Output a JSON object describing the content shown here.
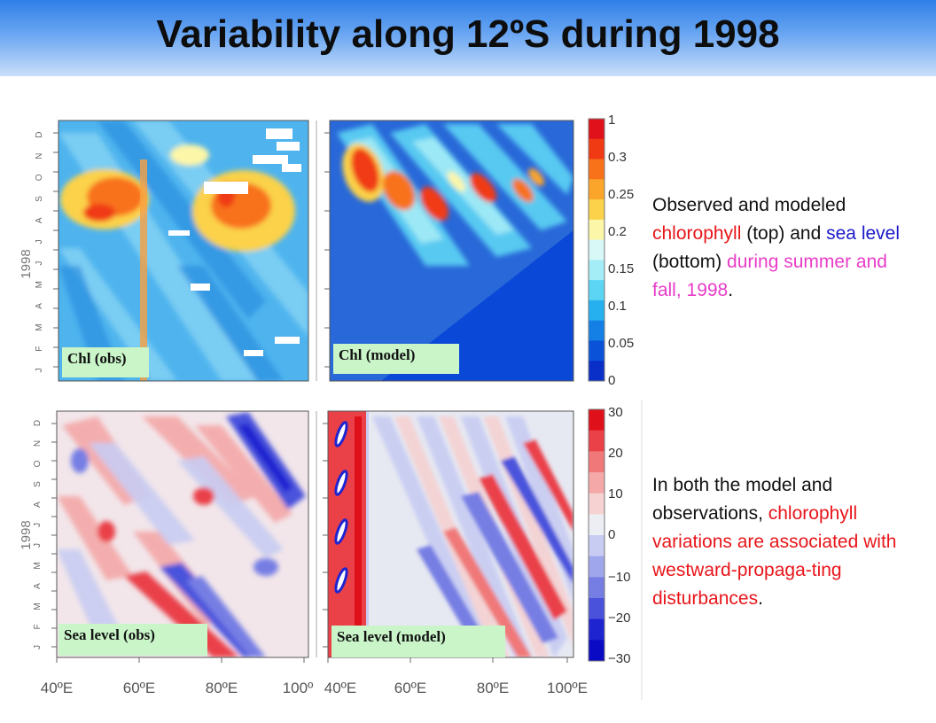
{
  "title": "Variability along 12ºS during 1998",
  "panels": {
    "chl_obs": "Chl (obs)",
    "chl_model": "Chl (model)",
    "sl_obs": "Sea level (obs)",
    "sl_model": "Sea level (model)"
  },
  "y_axis": {
    "year": "1998",
    "months": [
      "J",
      "F",
      "M",
      "A",
      "M",
      "J",
      "J",
      "A",
      "S",
      "O",
      "N",
      "D"
    ]
  },
  "x_axis": {
    "ticks_left": [
      "40ºE",
      "60ºE",
      "80ºE",
      "100º"
    ],
    "ticks_right": [
      "40ºE",
      "60ºE",
      "80ºE",
      "100ºE"
    ]
  },
  "colorbar_chl": {
    "ticks": [
      "1",
      "0.3",
      "0.25",
      "0.2",
      "0.15",
      "0.1",
      "0.05",
      "0"
    ],
    "colors": [
      "#e0111a",
      "#f03a14",
      "#f8721a",
      "#fba52a",
      "#fbd24a",
      "#fcf6a8",
      "#d8f8f8",
      "#a4ecf6",
      "#5cd4f4",
      "#26b0f0",
      "#1480e6",
      "#0a52d8",
      "#0a2ec8"
    ]
  },
  "colorbar_sl": {
    "ticks": [
      "30",
      "20",
      "10",
      "0",
      "−10",
      "−20",
      "−30"
    ],
    "colors": [
      "#e0101a",
      "#ea4048",
      "#f07878",
      "#f4a8a8",
      "#f6d2d2",
      "#eceef4",
      "#c8ccf2",
      "#a0a6ec",
      "#767ee4",
      "#4a52dc",
      "#1e24d0",
      "#0a0ac4"
    ]
  },
  "caption_top": {
    "p1": "Observed and modeled ",
    "chl": "chlorophyll",
    "p2": " (top) and ",
    "sea": "sea level",
    "p3": " (bottom) ",
    "when": "during summer and fall, 1998",
    "p4": "."
  },
  "caption_bottom": {
    "p1": "In both the model and observations, ",
    "red": "chlorophyll variations are associated with westward-propaga-ting disturbances",
    "p2": "."
  }
}
